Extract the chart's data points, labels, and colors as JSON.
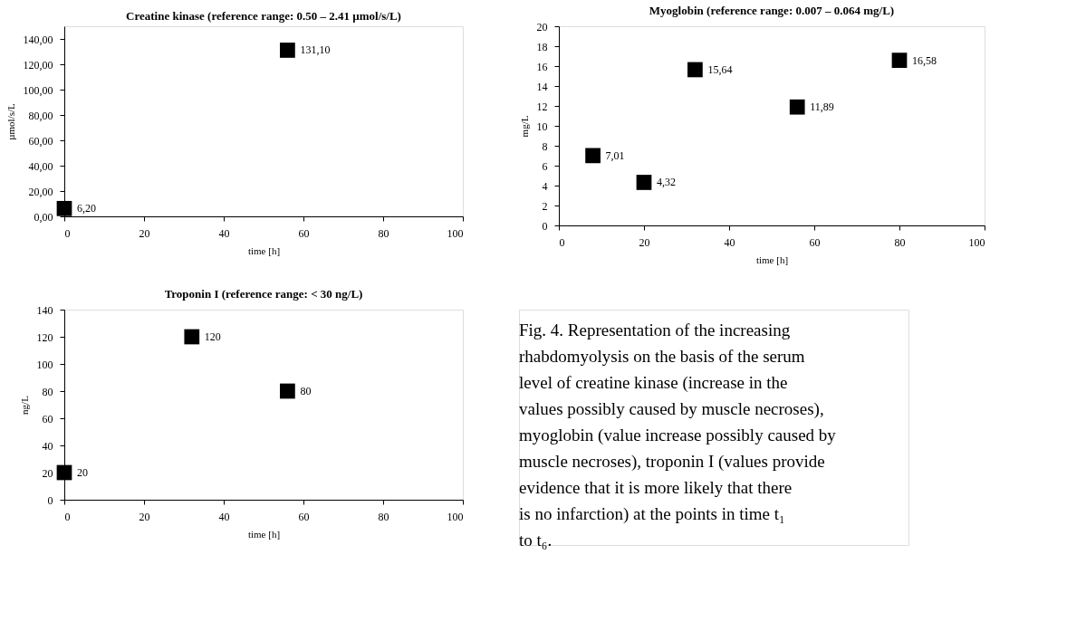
{
  "chart_data": [
    {
      "type": "scatter",
      "title": "Creatine kinase (reference range: 0.50 – 2.41 µmol/s/L)",
      "xlabel": "time [h]",
      "ylabel": "µmol/s/L",
      "marker": "square",
      "grid": false,
      "x": [
        0,
        56
      ],
      "values": [
        6.2,
        131.1
      ],
      "value_labels": [
        "6,20",
        "131,10"
      ],
      "color": "#000000",
      "xlim": [
        0,
        100
      ],
      "xticks": [
        0,
        20,
        40,
        60,
        80,
        100
      ],
      "ylim": [
        0,
        150
      ],
      "yticks": [
        {
          "value": 0,
          "label": "0,00"
        },
        {
          "value": 20,
          "label": "20,00"
        },
        {
          "value": 40,
          "label": "40,00"
        },
        {
          "value": 60,
          "label": "60,00"
        },
        {
          "value": 80,
          "label": "80,00"
        },
        {
          "value": 100,
          "label": "100,00"
        },
        {
          "value": 120,
          "label": "120,00"
        },
        {
          "value": 140,
          "label": "140,00"
        }
      ]
    },
    {
      "type": "scatter",
      "title": "Myoglobin (reference range: 0.007 – 0.064 mg/L)",
      "xlabel": "time [h]",
      "ylabel": "mg/L",
      "marker": "square",
      "grid": false,
      "x": [
        8,
        20,
        32,
        56,
        80
      ],
      "values": [
        7.01,
        4.32,
        15.64,
        11.89,
        16.58
      ],
      "value_labels": [
        "7,01",
        "4,32",
        "15,64",
        "11,89",
        "16,58"
      ],
      "color": "#000000",
      "xlim": [
        0,
        100
      ],
      "xticks": [
        0,
        20,
        40,
        60,
        80,
        100
      ],
      "ylim": [
        0,
        20
      ],
      "yticks": [
        0,
        2,
        4,
        6,
        8,
        10,
        12,
        14,
        16,
        18,
        20
      ]
    },
    {
      "type": "scatter",
      "title": "Troponin I (reference range: < 30 ng/L)",
      "xlabel": "time [h]",
      "ylabel": "ng/L",
      "marker": "square",
      "grid": false,
      "x": [
        0,
        32,
        56
      ],
      "values": [
        20,
        120,
        80
      ],
      "value_labels": [
        "20",
        "120",
        "80"
      ],
      "color": "#000000",
      "xlim": [
        0,
        100
      ],
      "xticks": [
        0,
        20,
        40,
        60,
        80,
        100
      ],
      "ylim": [
        0,
        140
      ],
      "yticks": [
        0,
        20,
        40,
        60,
        80,
        100,
        120,
        140
      ]
    },
    {
      "type": "other",
      "annotations": [
        "Fig. 4. Representation of the increasing rhabdomyolysis on the basis of the serum level of creatine kinase (increase in the values possibly caused by muscle necroses), myoglobin (value increase possibly caused by muscle necroses), troponin I (values provide evidence that it is more likely that there is no infarction) at the points in time t₁ to t₆."
      ]
    }
  ]
}
